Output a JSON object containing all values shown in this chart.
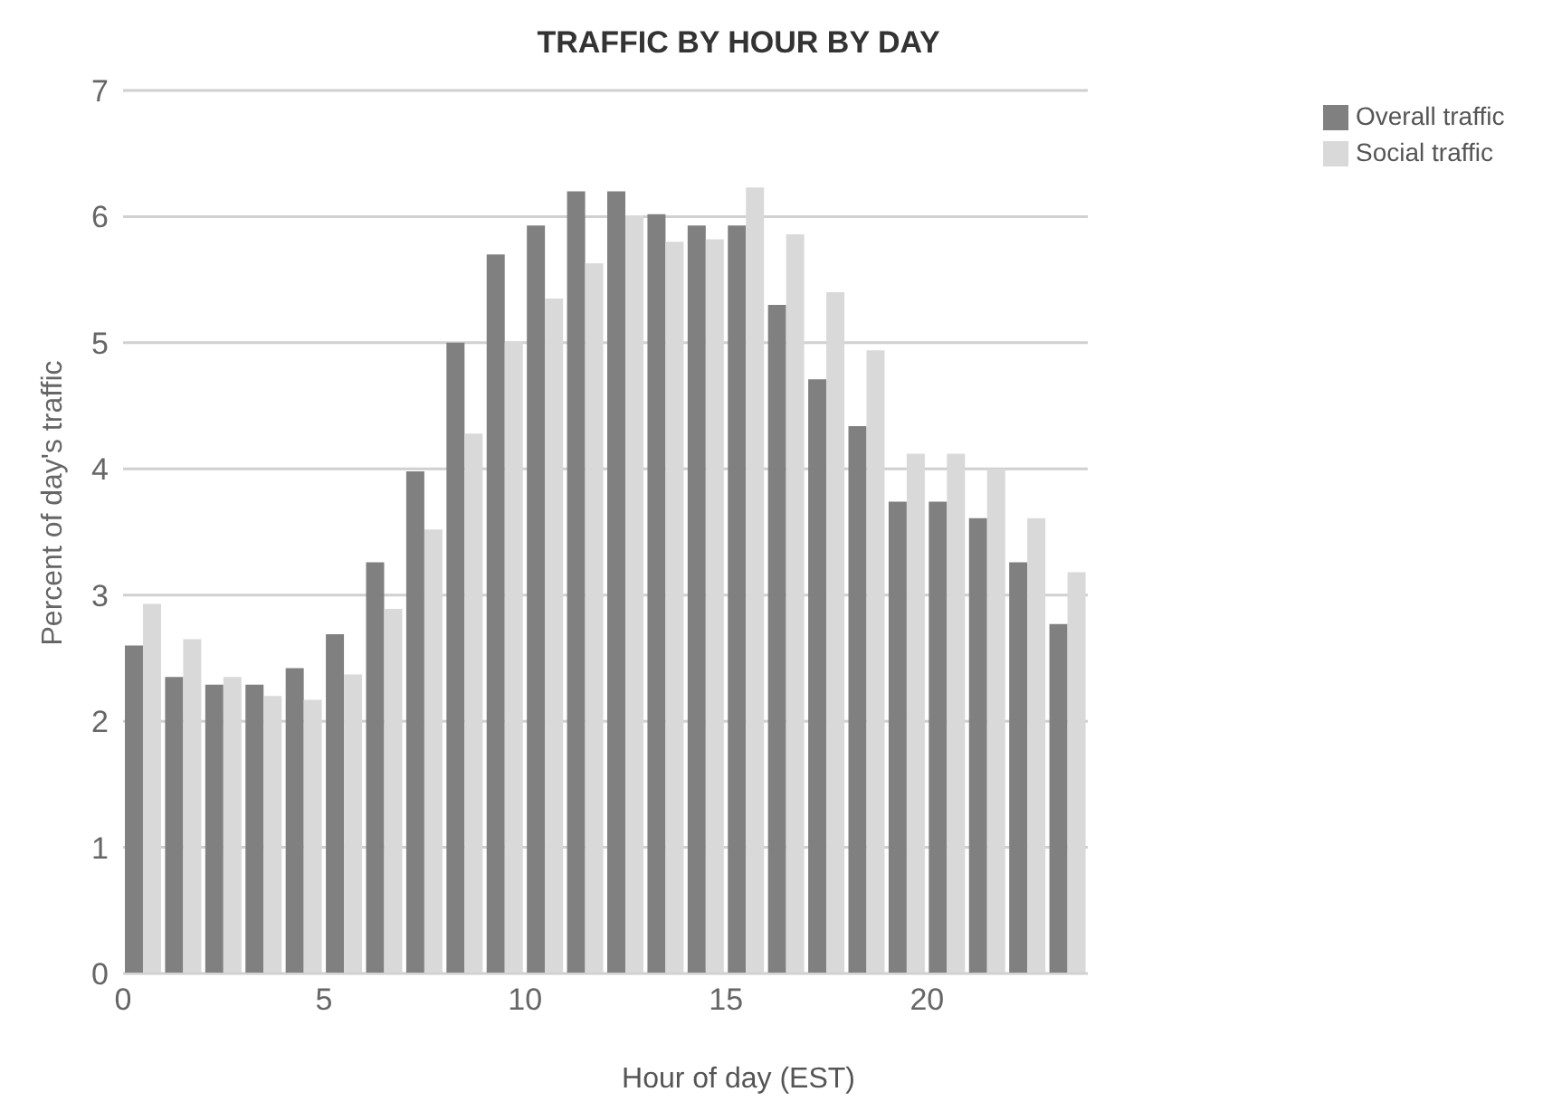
{
  "chart_data": {
    "type": "bar",
    "title": "TRAFFIC BY HOUR BY DAY",
    "xlabel": "Hour of day (EST)",
    "ylabel": "Percent of day's traffic",
    "x": [
      0.5,
      1.5,
      2.5,
      3.5,
      4.5,
      5.5,
      6.5,
      7.5,
      8.5,
      9.5,
      10.5,
      11.5,
      12.5,
      13.5,
      14.5,
      15.5,
      16.5,
      17.5,
      18.5,
      19.5,
      20.5,
      21.5,
      22.5,
      23.5
    ],
    "series": [
      {
        "name": "Overall traffic",
        "color": "#808080",
        "values": [
          2.6,
          2.35,
          2.29,
          2.29,
          2.42,
          2.69,
          3.26,
          3.98,
          5.0,
          5.7,
          5.93,
          6.2,
          6.2,
          6.02,
          5.93,
          5.93,
          5.3,
          4.71,
          4.34,
          3.74,
          3.74,
          3.61,
          3.26,
          2.77
        ]
      },
      {
        "name": "Social traffic",
        "color": "#d9d9d9",
        "values": [
          2.93,
          2.65,
          2.35,
          2.2,
          2.17,
          2.37,
          2.89,
          3.52,
          4.28,
          5.01,
          5.35,
          5.63,
          6.01,
          5.8,
          5.82,
          6.23,
          5.86,
          5.4,
          4.94,
          4.12,
          4.12,
          4.0,
          3.61,
          3.18
        ]
      }
    ],
    "xlim": [
      0,
      24
    ],
    "xticks": [
      0,
      5,
      10,
      15,
      20
    ],
    "ylim": [
      0,
      7
    ],
    "yticks": [
      0,
      1,
      2,
      3,
      4,
      5,
      6,
      7
    ],
    "grid": "y",
    "legend": "top right"
  }
}
